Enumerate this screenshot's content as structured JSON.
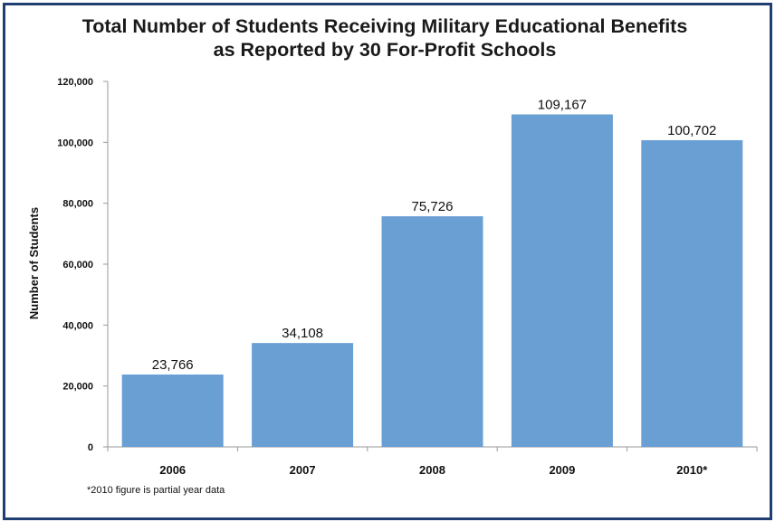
{
  "chart_data": {
    "type": "bar",
    "title_line1": "Total Number of Students Receiving Military Educational Benefits",
    "title_line2": "as Reported by 30 For-Profit Schools",
    "xlabel": "",
    "ylabel": "Number of Students",
    "categories": [
      "2006",
      "2007",
      "2008",
      "2009",
      "2010*"
    ],
    "values": [
      23766,
      34108,
      75726,
      109167,
      100702
    ],
    "value_labels": [
      "23,766",
      "34,108",
      "75,726",
      "109,167",
      "100,702"
    ],
    "ylim": [
      0,
      120000
    ],
    "yticks": [
      0,
      20000,
      40000,
      60000,
      80000,
      100000,
      120000
    ],
    "ytick_labels": [
      "0",
      "20,000",
      "40,000",
      "60,000",
      "80,000",
      "100,000",
      "120,000"
    ],
    "grid": false,
    "bar_color": "#6a9fd4",
    "footnote": "*2010 figure is partial year data"
  },
  "colors": {
    "frame": "#1f3f73",
    "axis": "#999999"
  }
}
